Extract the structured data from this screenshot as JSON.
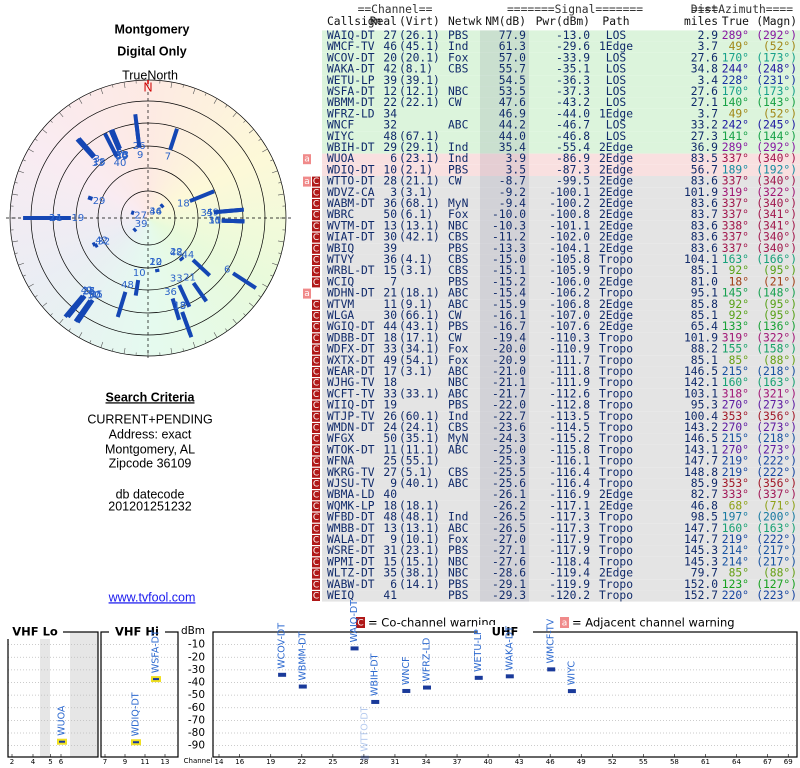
{
  "header": {
    "title": "Montgomery",
    "subtitle": "Digital Only"
  },
  "polar": {
    "north_label": "TrueNorth",
    "north": "N"
  },
  "search": {
    "title": "Search Criteria",
    "lines": [
      "CURRENT+PENDING",
      "Address: exact",
      "Montgomery, AL",
      "Zipcode 36109"
    ],
    "datecode_label": "db datecode",
    "datecode": "201201251232"
  },
  "link": "www.tvfool.com",
  "table": {
    "groups": [
      "==Channel==",
      "=======Signal=======",
      "Dist",
      "====Azimuth===="
    ],
    "columns": [
      "Callsign",
      "Real",
      "(Virt)",
      "Netwk",
      "NM(dB)",
      "Pwr(dBm)",
      "Path",
      "miles",
      "True",
      "(Magn)"
    ],
    "rows": [
      [
        [],
        "WAIQ-DT",
        27,
        "(26.1)",
        "PBS",
        77.9,
        {
          "value": -13,
          "label": "-13.0"
        },
        "LOS",
        2.9,
        {
          "value": 289,
          "label": "289°"
        },
        {
          "value": 292,
          "label": "(292°)"
        }
      ],
      [
        [],
        "WMCF-TV",
        46,
        "(45.1)",
        "Ind",
        61.3,
        -29.6,
        "1Edge",
        3.7,
        {
          "value": 49,
          "label": "49°"
        },
        {
          "value": 52,
          "label": "(52°)"
        }
      ],
      [
        [],
        "WCOV-DT",
        20,
        "(20.1)",
        "Fox",
        {
          "value": 57,
          "label": "57.0"
        },
        -33.9,
        "LOS",
        27.6,
        {
          "value": 170,
          "label": "170°"
        },
        {
          "value": 173,
          "label": "(173°)"
        }
      ],
      [
        [],
        "WAKA-DT",
        42,
        "(8.1)",
        "CBS",
        55.7,
        -35.1,
        "LOS",
        34.8,
        {
          "value": 244,
          "label": "244°"
        },
        {
          "value": 248,
          "label": "(248°)"
        }
      ],
      [
        [],
        "WETU-LP",
        39,
        "(39.1)",
        null,
        54.5,
        -36.3,
        "LOS",
        3.4,
        {
          "value": 228,
          "label": "228°"
        },
        {
          "value": 231,
          "label": "(231°)"
        }
      ],
      [
        [],
        "WSFA-DT",
        12,
        "(12.1)",
        "NBC",
        53.5,
        -37.3,
        "LOS",
        27.6,
        {
          "value": 170,
          "label": "170°"
        },
        {
          "value": 173,
          "label": "(173°)"
        }
      ],
      [
        [],
        "WBMM-DT",
        22,
        "(22.1)",
        "CW",
        47.6,
        -43.2,
        "LOS",
        27.1,
        {
          "value": 140,
          "label": "140°"
        },
        {
          "value": 143,
          "label": "(143°)"
        }
      ],
      [
        [],
        "WFRZ-LD",
        34,
        null,
        null,
        46.9,
        {
          "value": -44,
          "label": "-44.0"
        },
        "1Edge",
        3.7,
        {
          "value": 49,
          "label": "49°"
        },
        {
          "value": 52,
          "label": "(52°)"
        }
      ],
      [
        [],
        "WNCF",
        32,
        null,
        "ABC",
        44.2,
        -46.7,
        "LOS",
        33.2,
        {
          "value": 242,
          "label": "242°"
        },
        {
          "value": 245,
          "label": "(245°)"
        }
      ],
      [
        [],
        "WIYC",
        48,
        "(67.1)",
        null,
        {
          "value": 44,
          "label": "44.0"
        },
        -46.8,
        "LOS",
        27.3,
        {
          "value": 141,
          "label": "141°"
        },
        {
          "value": 144,
          "label": "(144°)"
        }
      ],
      [
        [],
        "WBIH-DT",
        29,
        "(29.1)",
        "Ind",
        35.4,
        -55.4,
        "2Edge",
        36.9,
        {
          "value": 289,
          "label": "289°"
        },
        {
          "value": 292,
          "label": "(292°)"
        }
      ],
      [
        [
          "a"
        ],
        "WUOA",
        6,
        "(23.1)",
        "Ind",
        3.9,
        -86.9,
        "2Edge",
        83.5,
        {
          "value": 337,
          "label": "337°"
        },
        {
          "value": 340,
          "label": "(340°)"
        }
      ],
      [
        [],
        "WDIQ-DT",
        10,
        "(2.1)",
        "PBS",
        3.5,
        -87.3,
        "2Edge",
        56.7,
        {
          "value": 189,
          "label": "189°"
        },
        {
          "value": 192,
          "label": "(192°)"
        }
      ],
      [
        [
          "a",
          "C"
        ],
        "WTTO-DT",
        28,
        "(21.1)",
        "CW",
        -8.7,
        -99.5,
        "2Edge",
        83.6,
        {
          "value": 337,
          "label": "337°"
        },
        {
          "value": 340,
          "label": "(340°)"
        }
      ],
      [
        [
          "C"
        ],
        "WDVZ-CA",
        3,
        "(3.1)",
        null,
        -9.2,
        -100.1,
        "2Edge",
        101.9,
        {
          "value": 319,
          "label": "319°"
        },
        {
          "value": 322,
          "label": "(322°)"
        }
      ],
      [
        [
          "C"
        ],
        "WABM-DT",
        36,
        "(68.1)",
        "MyN",
        -9.4,
        -100.2,
        "2Edge",
        83.6,
        {
          "value": 337,
          "label": "337°"
        },
        {
          "value": 340,
          "label": "(340°)"
        }
      ],
      [
        [
          "C"
        ],
        "WBRC",
        50,
        "(6.1)",
        "Fox",
        {
          "value": -10,
          "label": "-10.0"
        },
        -100.8,
        "2Edge",
        83.7,
        {
          "value": 337,
          "label": "337°"
        },
        {
          "value": 341,
          "label": "(341°)"
        }
      ],
      [
        [
          "C"
        ],
        "WVTM-DT",
        13,
        "(13.1)",
        "NBC",
        -10.3,
        -101.1,
        "2Edge",
        83.6,
        {
          "value": 338,
          "label": "338°"
        },
        {
          "value": 341,
          "label": "(341°)"
        }
      ],
      [
        [
          "C"
        ],
        "WIAT-DT",
        30,
        "(42.1)",
        "CBS",
        -11.2,
        {
          "value": -102,
          "label": "-102.0"
        },
        "2Edge",
        83.6,
        {
          "value": 337,
          "label": "337°"
        },
        {
          "value": 340,
          "label": "(340°)"
        }
      ],
      [
        [
          "C"
        ],
        "WBIQ",
        39,
        null,
        "PBS",
        -13.3,
        -104.1,
        "2Edge",
        83.6,
        {
          "value": 337,
          "label": "337°"
        },
        {
          "value": 340,
          "label": "(340°)"
        }
      ],
      [
        [
          "C"
        ],
        "WTVY",
        36,
        "(4.1)",
        "CBS",
        {
          "value": -15,
          "label": "-15.0"
        },
        -105.8,
        "Tropo",
        104.1,
        {
          "value": 163,
          "label": "163°"
        },
        {
          "value": 166,
          "label": "(166°)"
        }
      ],
      [
        [
          "C"
        ],
        "WRBL-DT",
        15,
        "(3.1)",
        "CBS",
        -15.1,
        -105.9,
        "Tropo",
        85.1,
        {
          "value": 92,
          "label": "92°"
        },
        {
          "value": 95,
          "label": "(95°)"
        }
      ],
      [
        [
          "C"
        ],
        "WCIQ",
        7,
        null,
        "PBS",
        -15.2,
        {
          "value": -106,
          "label": "-106.0"
        },
        "2Edge",
        {
          "value": 81,
          "label": "81.0"
        },
        {
          "value": 18,
          "label": "18°"
        },
        {
          "value": 21,
          "label": "(21°)"
        }
      ],
      [
        [
          "a"
        ],
        "WDHN-DT",
        21,
        "(18.1)",
        "ABC",
        -15.4,
        -106.2,
        "Tropo",
        95.1,
        {
          "value": 145,
          "label": "145°"
        },
        {
          "value": 148,
          "label": "(148°)"
        }
      ],
      [
        [
          "C"
        ],
        "WTVM",
        11,
        "(9.1)",
        "ABC",
        -15.9,
        -106.8,
        "2Edge",
        85.8,
        {
          "value": 92,
          "label": "92°"
        },
        {
          "value": 95,
          "label": "(95°)"
        }
      ],
      [
        [
          "C"
        ],
        "WLGA",
        30,
        "(66.1)",
        "CW",
        -16.1,
        {
          "value": -107,
          "label": "-107.0"
        },
        "2Edge",
        85.1,
        {
          "value": 92,
          "label": "92°"
        },
        {
          "value": 95,
          "label": "(95°)"
        }
      ],
      [
        [
          "C"
        ],
        "WGIQ-DT",
        44,
        "(43.1)",
        "PBS",
        -16.7,
        -107.6,
        "2Edge",
        65.4,
        {
          "value": 133,
          "label": "133°"
        },
        {
          "value": 136,
          "label": "(136°)"
        }
      ],
      [
        [
          "C"
        ],
        "WDBB-DT",
        18,
        "(17.1)",
        "CW",
        -19.4,
        -110.3,
        "Tropo",
        101.9,
        {
          "value": 319,
          "label": "319°"
        },
        {
          "value": 322,
          "label": "(322°)"
        }
      ],
      [
        [
          "C"
        ],
        "WDFX-DT",
        33,
        "(34.1)",
        "Fox",
        {
          "value": -20,
          "label": "-20.0"
        },
        -110.9,
        "Tropo",
        88.2,
        {
          "value": 155,
          "label": "155°"
        },
        {
          "value": 158,
          "label": "(158°)"
        }
      ],
      [
        [
          "C"
        ],
        "WXTX-DT",
        49,
        "(54.1)",
        "Fox",
        -20.9,
        -111.7,
        "Tropo",
        85.1,
        {
          "value": 85,
          "label": "85°"
        },
        {
          "value": 88,
          "label": "(88°)"
        }
      ],
      [
        [
          "C"
        ],
        "WEAR-DT",
        17,
        "(3.1)",
        "ABC",
        {
          "value": -21,
          "label": "-21.0"
        },
        -111.8,
        "Tropo",
        146.5,
        {
          "value": 215,
          "label": "215°"
        },
        {
          "value": 218,
          "label": "(218°)"
        }
      ],
      [
        [
          "C"
        ],
        "WJHG-TV",
        18,
        null,
        "NBC",
        -21.1,
        -111.9,
        "Tropo",
        142.1,
        {
          "value": 160,
          "label": "160°"
        },
        {
          "value": 163,
          "label": "(163°)"
        }
      ],
      [
        [
          "C"
        ],
        "WCFT-TV",
        33,
        "(33.1)",
        "ABC",
        -21.7,
        -112.6,
        "Tropo",
        103.1,
        {
          "value": 318,
          "label": "318°"
        },
        {
          "value": 321,
          "label": "(321°)"
        }
      ],
      [
        [
          "C"
        ],
        "WIIQ-DT",
        19,
        null,
        "PBS",
        {
          "value": -22,
          "label": "-22.0"
        },
        -112.8,
        "Tropo",
        95.3,
        {
          "value": 270,
          "label": "270°"
        },
        {
          "value": 273,
          "label": "(273°)"
        }
      ],
      [
        [
          "C"
        ],
        "WTJP-TV",
        26,
        "(60.1)",
        "Ind",
        -22.7,
        -113.5,
        "Tropo",
        100.4,
        {
          "value": 353,
          "label": "353°"
        },
        {
          "value": 356,
          "label": "(356°)"
        }
      ],
      [
        [
          "C"
        ],
        "WMDN-DT",
        24,
        "(24.1)",
        "CBS",
        -23.6,
        -114.5,
        "Tropo",
        143.2,
        {
          "value": 270,
          "label": "270°"
        },
        {
          "value": 273,
          "label": "(273°)"
        }
      ],
      [
        [
          "C"
        ],
        "WFGX",
        50,
        "(35.1)",
        "MyN",
        -24.3,
        -115.2,
        "Tropo",
        146.5,
        {
          "value": 215,
          "label": "215°"
        },
        {
          "value": 218,
          "label": "(218°)"
        }
      ],
      [
        [
          "C"
        ],
        "WTOK-DT",
        11,
        "(11.1)",
        "ABC",
        {
          "value": -25,
          "label": "-25.0"
        },
        -115.8,
        "Tropo",
        143.1,
        {
          "value": 270,
          "label": "270°"
        },
        {
          "value": 273,
          "label": "(273°)"
        }
      ],
      [
        [
          "C"
        ],
        "WFNA",
        25,
        "(55.1)",
        null,
        -25.3,
        -116.1,
        "Tropo",
        147.7,
        {
          "value": 219,
          "label": "219°"
        },
        {
          "value": 222,
          "label": "(222°)"
        }
      ],
      [
        [
          "C"
        ],
        "WKRG-TV",
        27,
        "(5.1)",
        "CBS",
        -25.5,
        -116.4,
        "Tropo",
        148.8,
        {
          "value": 219,
          "label": "219°"
        },
        {
          "value": 222,
          "label": "(222°)"
        }
      ],
      [
        [
          "C"
        ],
        "WJSU-TV",
        9,
        "(40.1)",
        "ABC",
        -25.6,
        -116.4,
        "Tropo",
        85.9,
        {
          "value": 353,
          "label": "353°"
        },
        {
          "value": 356,
          "label": "(356°)"
        }
      ],
      [
        [
          "C"
        ],
        "WBMA-LD",
        40,
        null,
        null,
        -26.1,
        -116.9,
        "2Edge",
        82.7,
        {
          "value": 333,
          "label": "333°"
        },
        {
          "value": 337,
          "label": "(337°)"
        }
      ],
      [
        [
          "C"
        ],
        "WQMK-LP",
        18,
        "(18.1)",
        null,
        -26.2,
        -117.1,
        "2Edge",
        46.8,
        {
          "value": 68,
          "label": "68°"
        },
        {
          "value": 71,
          "label": "(71°)"
        }
      ],
      [
        [
          "C"
        ],
        "WFBD-DT",
        48,
        "(48.1)",
        "Ind",
        -26.5,
        -117.3,
        "Tropo",
        98.5,
        {
          "value": 197,
          "label": "197°"
        },
        {
          "value": 200,
          "label": "(200°)"
        }
      ],
      [
        [
          "C"
        ],
        "WMBB-DT",
        13,
        "(13.1)",
        "ABC",
        -26.5,
        -117.3,
        "Tropo",
        147.7,
        {
          "value": 160,
          "label": "160°"
        },
        {
          "value": 163,
          "label": "(163°)"
        }
      ],
      [
        [
          "C"
        ],
        "WALA-DT",
        9,
        "(10.1)",
        "Fox",
        {
          "value": -27,
          "label": "-27.0"
        },
        -117.9,
        "Tropo",
        147.7,
        {
          "value": 219,
          "label": "219°"
        },
        {
          "value": 222,
          "label": "(222°)"
        }
      ],
      [
        [
          "C"
        ],
        "WSRE-DT",
        31,
        "(23.1)",
        "PBS",
        -27.1,
        -117.9,
        "Tropo",
        145.3,
        {
          "value": 214,
          "label": "214°"
        },
        {
          "value": 217,
          "label": "(217°)"
        }
      ],
      [
        [
          "C"
        ],
        "WPMI-DT",
        15,
        "(15.1)",
        "NBC",
        -27.6,
        -118.4,
        "Tropo",
        145.3,
        {
          "value": 214,
          "label": "214°"
        },
        {
          "value": 217,
          "label": "(217°)"
        }
      ],
      [
        [
          "C"
        ],
        "WLTZ-DT",
        35,
        "(38.1)",
        "NBC",
        -28.6,
        -119.4,
        "2Edge",
        79.7,
        {
          "value": 85,
          "label": "85°"
        },
        {
          "value": 88,
          "label": "(88°)"
        }
      ],
      [
        [
          "C"
        ],
        "WABW-DT",
        6,
        "(14.1)",
        "PBS",
        -29.1,
        -119.9,
        "Tropo",
        {
          "value": 152,
          "label": "152.0"
        },
        {
          "value": 123,
          "label": "123°"
        },
        {
          "value": 127,
          "label": "(127°)"
        }
      ],
      [
        [
          "C"
        ],
        "WEIQ",
        41,
        null,
        "PBS",
        -29.3,
        -120.2,
        "Tropo",
        152.7,
        {
          "value": 220,
          "label": "220°"
        },
        {
          "value": 223,
          "label": "(223°)"
        }
      ]
    ]
  },
  "legend": [
    {
      "flag": "C",
      "text": "= Co-channel warning"
    },
    {
      "flag": "a",
      "text": "= Adjacent channel warning"
    }
  ],
  "spectrum": {
    "bands": [
      "VHF Lo",
      "VHF Hi",
      "UHF"
    ],
    "y_label": "dBm",
    "x_label": "Channel",
    "ylim": [
      0,
      -99
    ],
    "yticks": [
      -10,
      -20,
      -30,
      -40,
      -50,
      -60,
      -70,
      -80,
      -90
    ],
    "xticks": {
      "lo": [
        2,
        4,
        5,
        6
      ],
      "hi": [
        7,
        9,
        11,
        13
      ],
      "uhf": [
        14,
        16,
        19,
        22,
        25,
        28,
        31,
        34,
        37,
        40,
        43,
        46,
        49,
        52,
        55,
        58,
        61,
        64,
        67,
        69
      ]
    },
    "stations": [
      {
        "name": "WUOA",
        "channel": 6,
        "value": -86.9
      },
      {
        "name": "WDIQ-DT",
        "channel": 10,
        "value": -87.3
      },
      {
        "name": "WSFA-DT",
        "channel": 12,
        "value": -37.3
      },
      {
        "name": "WCOV-DT",
        "channel": 20,
        "value": -33.9
      },
      {
        "name": "WBMM-DT",
        "channel": 22,
        "value": -43.2
      },
      {
        "name": "WAIQ-DT",
        "channel": 27,
        "value": -13
      },
      {
        "name": "WTTO-DT",
        "channel": 28,
        "value": -99.5
      },
      {
        "name": "WBIH-DT",
        "channel": 29,
        "value": -55.4
      },
      {
        "name": "WNCF",
        "channel": 32,
        "value": -46.7
      },
      {
        "name": "WFRZ-LD",
        "channel": 34,
        "value": -44
      },
      {
        "name": "WETU-LP",
        "channel": 39,
        "value": -36.3
      },
      {
        "name": "WAKA-DT",
        "channel": 42,
        "value": -35.1
      },
      {
        "name": "WMCF-TV",
        "channel": 46,
        "value": -29.6
      },
      {
        "name": "WIYC",
        "channel": 48,
        "value": -46.8
      }
    ]
  }
}
